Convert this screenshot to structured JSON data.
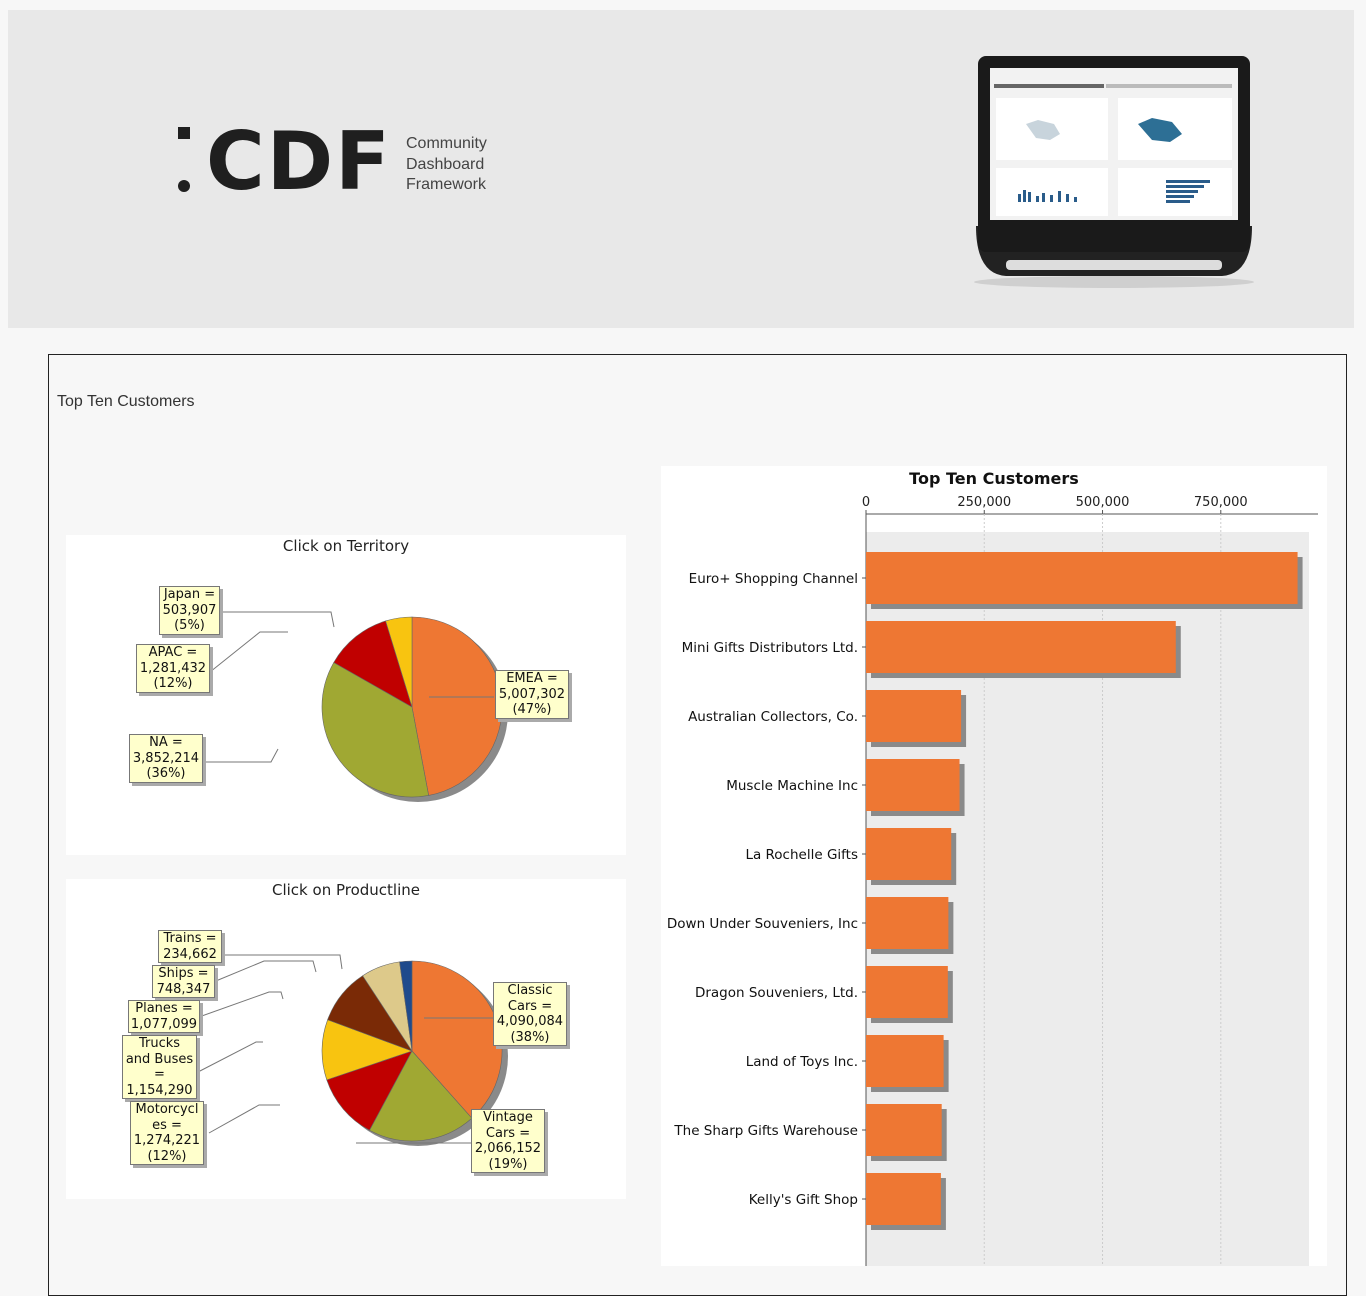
{
  "header": {
    "logo_text": "CDF",
    "tagline_lines": [
      "Community",
      "Dashboard",
      "Framework"
    ]
  },
  "main": {
    "title": "Top Ten Customers"
  },
  "territory_panel": {
    "title": "Click on Territory",
    "labels": [
      {
        "lines": [
          "Japan =",
          "503,907",
          "(5%)"
        ]
      },
      {
        "lines": [
          "APAC =",
          "1,281,432",
          "(12%)"
        ]
      },
      {
        "lines": [
          "NA =",
          "3,852,214",
          "(36%)"
        ]
      },
      {
        "lines": [
          "EMEA =",
          "5,007,302",
          "(47%)"
        ]
      }
    ]
  },
  "productline_panel": {
    "title": "Click on Productline",
    "labels": [
      {
        "lines": [
          "Trains =",
          "234,662"
        ]
      },
      {
        "lines": [
          "Ships =",
          "748,347"
        ]
      },
      {
        "lines": [
          "Planes =",
          "1,077,099"
        ]
      },
      {
        "lines": [
          "Trucks",
          "and Buses",
          "=",
          "1,154,290"
        ]
      },
      {
        "lines": [
          "Motorcycl",
          "es =",
          "1,274,221",
          "(12%)"
        ]
      },
      {
        "lines": [
          "Classic",
          "Cars =",
          "4,090,084",
          "(38%)"
        ]
      },
      {
        "lines": [
          "Vintage",
          "Cars =",
          "2,066,152",
          "(19%)"
        ]
      }
    ]
  },
  "chart_data": [
    {
      "type": "pie",
      "title": "Click on Territory",
      "slices": [
        {
          "label": "EMEA",
          "value": 5007302,
          "percent": 47,
          "color": "#ee7733"
        },
        {
          "label": "NA",
          "value": 3852214,
          "percent": 36,
          "color": "#a0a833"
        },
        {
          "label": "APAC",
          "value": 1281432,
          "percent": 12,
          "color": "#c00000"
        },
        {
          "label": "Japan",
          "value": 503907,
          "percent": 5,
          "color": "#f8c410"
        }
      ]
    },
    {
      "type": "pie",
      "title": "Click on Productline",
      "slices": [
        {
          "label": "Classic Cars",
          "value": 4090084,
          "percent": 38,
          "color": "#ee7733"
        },
        {
          "label": "Vintage Cars",
          "value": 2066152,
          "percent": 19,
          "color": "#a0a833"
        },
        {
          "label": "Motorcycles",
          "value": 1274221,
          "percent": 12,
          "color": "#c00000"
        },
        {
          "label": "Trucks and Buses",
          "value": 1154290,
          "color": "#f8c410"
        },
        {
          "label": "Planes",
          "value": 1077099,
          "color": "#7a2a06"
        },
        {
          "label": "Ships",
          "value": 748347,
          "color": "#ddc98a"
        },
        {
          "label": "Trains",
          "value": 234662,
          "color": "#1f4a8c"
        }
      ]
    },
    {
      "type": "bar",
      "orientation": "horizontal",
      "title": "Top Ten Customers",
      "categories": [
        "Euro+ Shopping Channel",
        "Mini Gifts Distributors Ltd.",
        "Australian Collectors, Co.",
        "Muscle Machine Inc",
        "La Rochelle Gifts",
        "Down Under Souveniers, Inc",
        "Dragon Souveniers, Ltd.",
        "Land of Toys Inc.",
        "The Sharp Gifts Warehouse",
        "Kelly's Gift Shop"
      ],
      "values": [
        912294,
        654858,
        200995,
        197737,
        180125,
        174140,
        172990,
        164069,
        160010,
        158345
      ],
      "xlim": [
        0,
        960000
      ],
      "ticks": [
        0,
        250000,
        500000,
        750000
      ],
      "tick_labels": [
        "0",
        "250,000",
        "500,000",
        "750,000"
      ],
      "bar_color": "#ee7733"
    }
  ]
}
